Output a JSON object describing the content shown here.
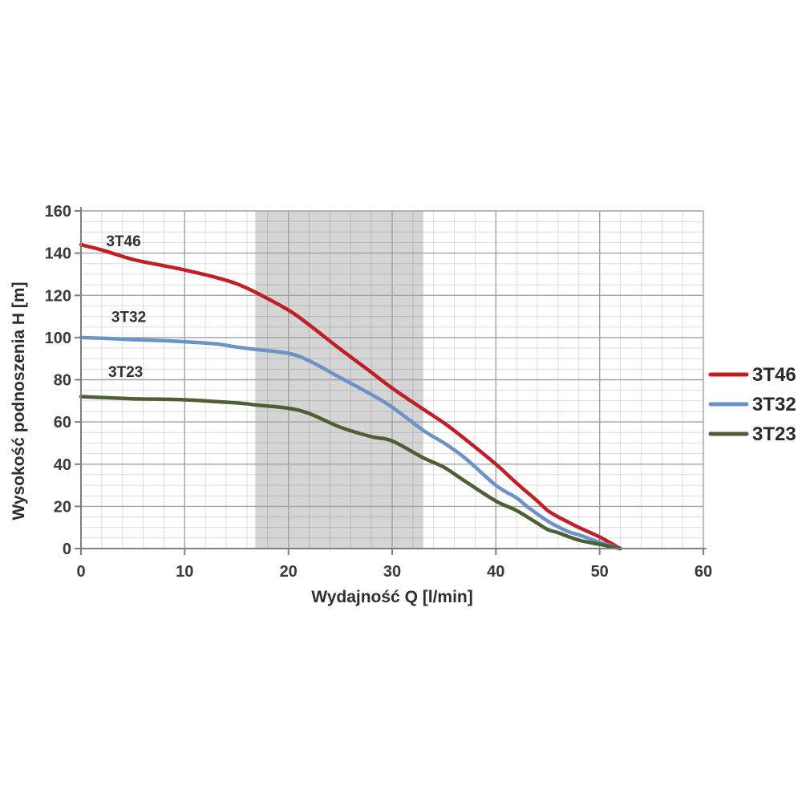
{
  "page": {
    "background": "#ffffff"
  },
  "style": {
    "band_color": "#d5d5d5",
    "grid_minor_color": "rgba(0,0,0,0.13)",
    "grid_major_color": "#a2a2a2",
    "axis_color": "#7f7f7f",
    "text_color": "#3a3a3a"
  },
  "chart_data": {
    "type": "line",
    "title": "",
    "xlabel": "Wydajność Q [l/min]",
    "ylabel": "Wysokość podnoszenia H [m]",
    "xlim": [
      0,
      60
    ],
    "ylim": [
      0,
      160
    ],
    "xticks": [
      0,
      10,
      20,
      30,
      40,
      50,
      60
    ],
    "yticks": [
      0,
      20,
      40,
      60,
      80,
      100,
      120,
      140,
      160
    ],
    "x_minor_step": 2,
    "y_minor_step": 5,
    "grid": true,
    "legend_position": "right-outside",
    "shaded_band": {
      "x_from": 16.8,
      "x_to": 33,
      "color": "#d5d5d5"
    },
    "series": [
      {
        "name": "3T46",
        "color": "#bf2026",
        "label_q": 4.1,
        "label_h": 146,
        "points": [
          [
            0,
            144
          ],
          [
            2,
            141.5
          ],
          [
            5,
            137
          ],
          [
            8,
            134
          ],
          [
            10,
            132
          ],
          [
            13,
            128.5
          ],
          [
            15,
            125.5
          ],
          [
            17,
            121
          ],
          [
            20,
            113
          ],
          [
            22,
            106
          ],
          [
            25,
            94.5
          ],
          [
            28,
            83.5
          ],
          [
            30,
            76
          ],
          [
            33,
            66
          ],
          [
            35,
            59.5
          ],
          [
            37,
            52
          ],
          [
            40,
            40
          ],
          [
            42,
            31
          ],
          [
            44,
            22.5
          ],
          [
            45,
            18
          ],
          [
            46,
            15
          ],
          [
            47,
            12.5
          ],
          [
            48,
            10
          ],
          [
            50,
            5.5
          ],
          [
            52,
            0
          ]
        ]
      },
      {
        "name": "3T32",
        "color": "#6b93c8",
        "label_q": 4.6,
        "label_h": 110,
        "points": [
          [
            0,
            100
          ],
          [
            3,
            99.5
          ],
          [
            5,
            99
          ],
          [
            8,
            98.5
          ],
          [
            10,
            98
          ],
          [
            13,
            97
          ],
          [
            15,
            95.5
          ],
          [
            17,
            94.3
          ],
          [
            20,
            92.5
          ],
          [
            22,
            89
          ],
          [
            25,
            81
          ],
          [
            28,
            73
          ],
          [
            30,
            67
          ],
          [
            33,
            56
          ],
          [
            35,
            50
          ],
          [
            37,
            43
          ],
          [
            40,
            30
          ],
          [
            42,
            24
          ],
          [
            43,
            20
          ],
          [
            45,
            13
          ],
          [
            47,
            8
          ],
          [
            48,
            6.5
          ],
          [
            50,
            3
          ],
          [
            52,
            0
          ]
        ]
      },
      {
        "name": "3T23",
        "color": "#4d5f35",
        "label_q": 4.3,
        "label_h": 84,
        "points": [
          [
            0,
            72
          ],
          [
            5,
            71
          ],
          [
            10,
            70.5
          ],
          [
            15,
            69
          ],
          [
            17,
            68
          ],
          [
            20,
            66.5
          ],
          [
            22,
            64
          ],
          [
            25,
            57.5
          ],
          [
            28,
            53
          ],
          [
            30,
            51
          ],
          [
            33,
            43
          ],
          [
            35,
            38.5
          ],
          [
            37,
            32
          ],
          [
            40,
            22.5
          ],
          [
            42,
            18
          ],
          [
            44,
            12
          ],
          [
            45,
            9
          ],
          [
            46,
            7.5
          ],
          [
            48,
            4
          ],
          [
            50,
            2
          ],
          [
            52,
            0
          ]
        ]
      }
    ]
  }
}
